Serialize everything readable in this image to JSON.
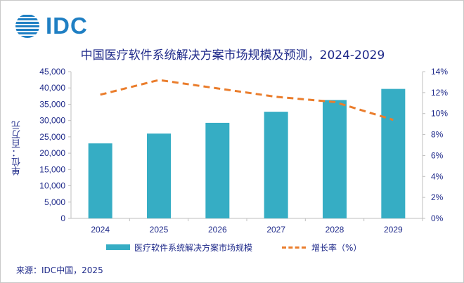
{
  "logo": {
    "text": "IDC"
  },
  "chart_data": {
    "type": "bar",
    "title": "中国医疗软件系统解决方案市场规模及预测，2024-2029",
    "categories": [
      "2024",
      "2025",
      "2026",
      "2027",
      "2028",
      "2029"
    ],
    "series": [
      {
        "name": "医疗软件系统解决方案市场规模",
        "type": "bar",
        "axis": "left",
        "values": [
          23000,
          26000,
          29300,
          32700,
          36300,
          39700
        ]
      },
      {
        "name": "增长率（%）",
        "type": "line",
        "axis": "right",
        "values": [
          11.8,
          13.2,
          12.4,
          11.6,
          11.1,
          9.4
        ]
      }
    ],
    "ylabel": "单位：百万元",
    "ylim": [
      0,
      45000
    ],
    "y_ticks": [
      "0",
      "5,000",
      "10,000",
      "15,000",
      "20,000",
      "25,000",
      "30,000",
      "35,000",
      "40,000",
      "45,000"
    ],
    "y2lim": [
      0,
      14
    ],
    "y2_ticks": [
      "0%",
      "2%",
      "4%",
      "6%",
      "8%",
      "10%",
      "12%",
      "14%"
    ],
    "grid": false,
    "legend_placement": "bottom",
    "colors": {
      "bar": "#36adc4",
      "line": "#ea7d2c",
      "text": "#1f2a8a"
    }
  },
  "source": "来源：IDC中国，2025"
}
